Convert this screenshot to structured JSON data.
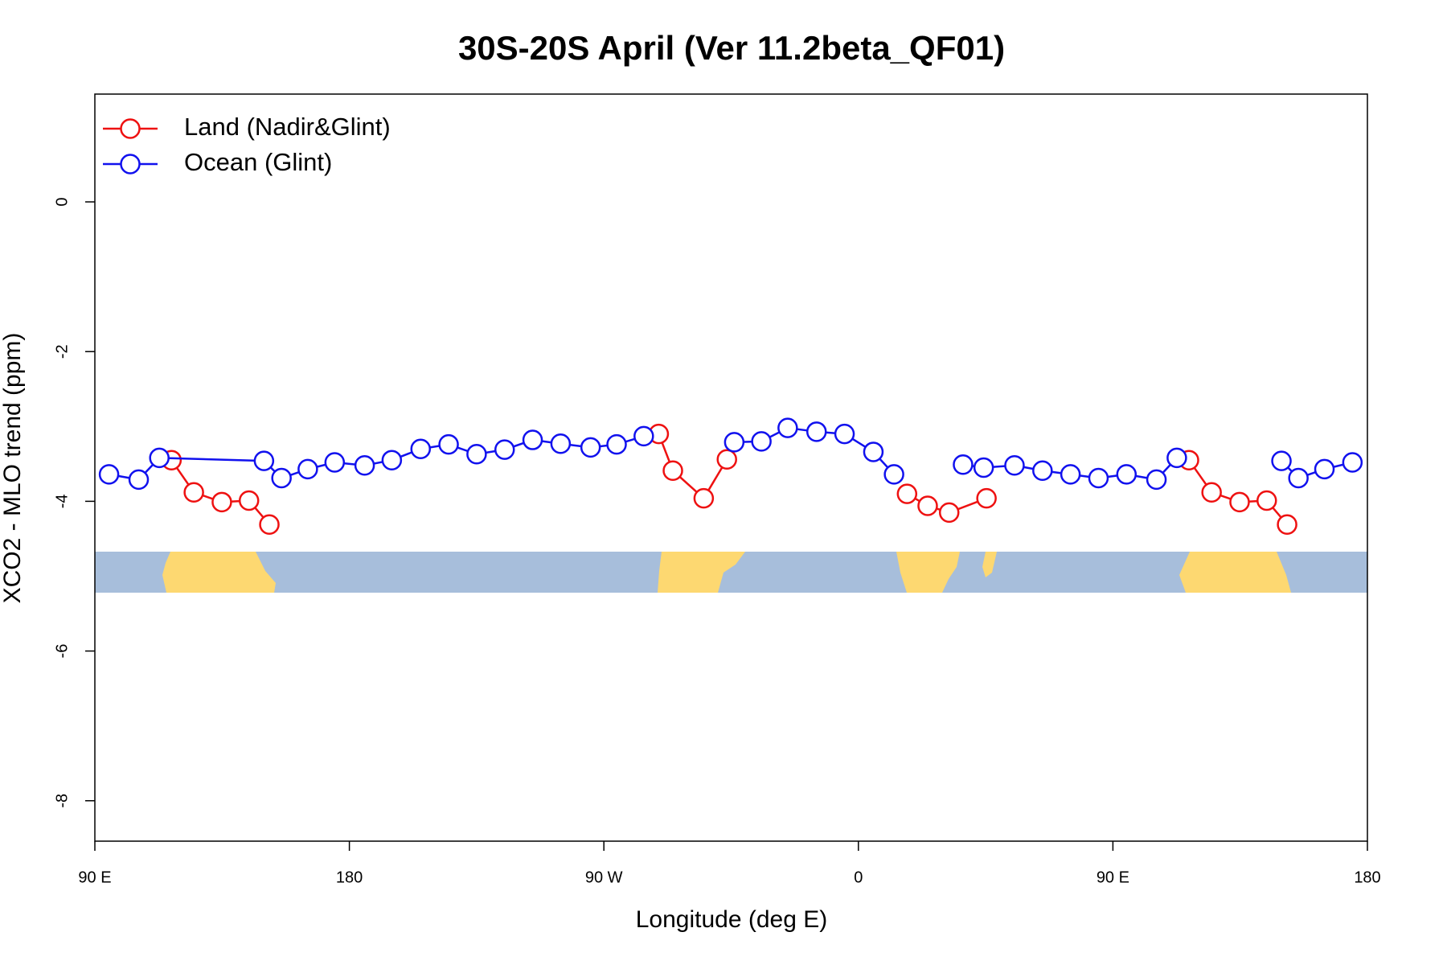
{
  "chart_data": {
    "type": "line",
    "title": "30S-20S April (Ver 11.2beta_QF01)",
    "x_label": "Longitude (deg E)",
    "y_label": "XCO2 - MLO trend (ppm)",
    "xlim": [
      90,
      540
    ],
    "ylim": [
      -8.54,
      1.44
    ],
    "xticks": [
      {
        "value": 90,
        "label": "90 E"
      },
      180,
      {
        "value": 270,
        "label": "90 W"
      },
      {
        "value": 360,
        "label": "0"
      },
      {
        "value": 450,
        "label": "90 E"
      },
      {
        "value": 540,
        "label": "180"
      }
    ],
    "yticks": [
      0,
      -2,
      -4,
      -6,
      -8
    ],
    "legend": "top-left",
    "series": [
      {
        "name": "Land (Nadir&Glint)",
        "color": "#ee1111",
        "x": [
          117.1,
          125,
          134.9,
          144.5,
          151.7,
          null,
          289.4,
          294.4,
          305.3,
          313.5,
          null,
          377.2,
          384.5,
          392.1,
          405.3,
          null,
          476.9,
          484.9,
          494.8,
          504.4,
          511.6
        ],
        "values": [
          -3.45,
          -3.88,
          -4.01,
          -3.99,
          -4.31,
          null,
          -3.1,
          -3.59,
          -3.96,
          -3.44,
          null,
          -3.9,
          -4.06,
          -4.15,
          -3.96,
          null,
          -3.45,
          -3.88,
          -4.01,
          -3.99,
          -4.31
        ]
      },
      {
        "name": "Ocean (Glint)",
        "color": "#1111ee",
        "x": [
          95,
          105.5,
          112.8,
          149.8,
          156,
          165.3,
          174.8,
          185.4,
          195,
          205.2,
          215.1,
          225,
          234.9,
          244.8,
          254.7,
          265.3,
          274.5,
          284.1,
          null,
          316.1,
          325.7,
          335,
          345.2,
          355.1,
          365.3,
          372.6,
          null,
          397,
          404.3,
          415.2,
          425.1,
          435,
          444.9,
          454.8,
          465.4,
          472.6,
          null,
          509.6,
          515.6,
          524.8,
          534.7
        ],
        "values": [
          -3.64,
          -3.71,
          -3.42,
          -3.46,
          -3.69,
          -3.57,
          -3.48,
          -3.52,
          -3.45,
          -3.3,
          -3.24,
          -3.37,
          -3.31,
          -3.18,
          -3.23,
          -3.28,
          -3.24,
          -3.13,
          null,
          -3.21,
          -3.2,
          -3.02,
          -3.07,
          -3.1,
          -3.34,
          -3.64,
          null,
          -3.51,
          -3.55,
          -3.52,
          -3.59,
          -3.64,
          -3.69,
          -3.64,
          -3.71,
          -3.42,
          null,
          -3.46,
          -3.69,
          -3.57,
          -3.48
        ]
      }
    ]
  }
}
